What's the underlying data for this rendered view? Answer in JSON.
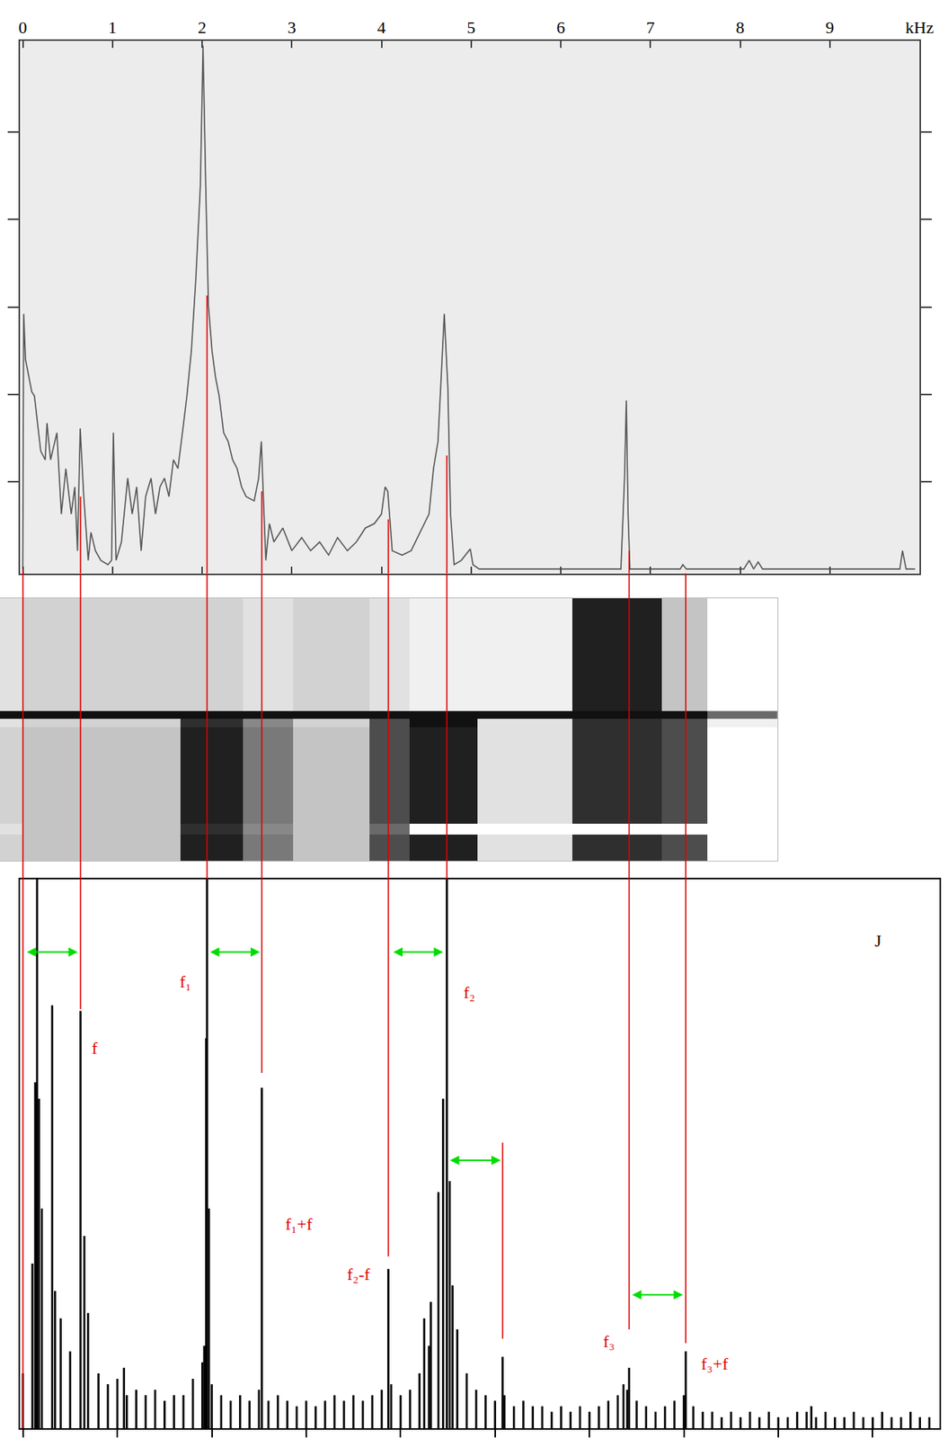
{
  "chart_data": [
    {
      "type": "line",
      "color": "#555555",
      "xlim": [
        -0.03,
        10
      ],
      "xticks": [
        0,
        1,
        2,
        3,
        4,
        5,
        6,
        7,
        8,
        9,
        {
          "value": 10,
          "label": "kHz"
        }
      ],
      "ylim": [
        -0.05,
        6.04
      ],
      "yticks": [
        1,
        2,
        3,
        4,
        5
      ],
      "tick_labels": "x",
      "x": [
        0.0,
        0.01,
        0.03,
        0.1,
        0.13,
        0.2,
        0.25,
        0.27,
        0.31,
        0.38,
        0.43,
        0.48,
        0.54,
        0.58,
        0.61,
        0.64,
        0.68,
        0.73,
        0.76,
        0.81,
        0.87,
        0.95,
        0.99,
        1.01,
        1.04,
        1.1,
        1.17,
        1.22,
        1.27,
        1.32,
        1.37,
        1.43,
        1.48,
        1.53,
        1.58,
        1.63,
        1.68,
        1.73,
        1.78,
        1.83,
        1.88,
        1.93,
        1.98,
        2.01,
        2.04,
        2.07,
        2.11,
        2.15,
        2.19,
        2.24,
        2.29,
        2.34,
        2.39,
        2.44,
        2.49,
        2.58,
        2.63,
        2.66,
        2.69,
        2.71,
        2.75,
        2.8,
        2.9,
        3.0,
        3.11,
        3.21,
        3.31,
        3.41,
        3.51,
        3.62,
        3.72,
        3.82,
        3.92,
        4.0,
        4.04,
        4.07,
        4.12,
        4.23,
        4.33,
        4.43,
        4.53,
        4.58,
        4.63,
        4.67,
        4.7,
        4.74,
        4.77,
        4.81,
        4.89,
        4.99,
        5.02,
        5.09,
        6.67,
        6.71,
        6.73,
        6.75,
        6.77,
        7.33,
        7.36,
        7.4,
        8.04,
        8.1,
        8.15,
        8.2,
        8.25,
        9.78,
        9.81,
        9.85,
        9.95
      ],
      "values": [
        0,
        2.92,
        2.4,
        2.03,
        1.98,
        1.35,
        1.25,
        1.67,
        1.25,
        1.56,
        0.63,
        1.15,
        0.63,
        0.94,
        0.21,
        1.61,
        0.83,
        0.1,
        0.42,
        0.21,
        0.1,
        0.05,
        0.1,
        1.56,
        0.1,
        0.31,
        1.04,
        0.63,
        0.94,
        0.21,
        0.83,
        1.04,
        0.63,
        0.94,
        1.04,
        0.83,
        1.25,
        1.15,
        1.56,
        1.98,
        2.5,
        3.33,
        4.38,
        5.99,
        4.38,
        3.02,
        2.5,
        2.19,
        1.98,
        1.56,
        1.46,
        1.25,
        1.15,
        0.94,
        0.83,
        0.78,
        1.04,
        1.46,
        0.63,
        0.1,
        0.52,
        0.31,
        0.47,
        0.21,
        0.36,
        0.21,
        0.31,
        0.16,
        0.36,
        0.21,
        0.31,
        0.47,
        0.52,
        0.63,
        0.94,
        0.89,
        0.21,
        0.16,
        0.21,
        0.42,
        0.63,
        1.15,
        1.46,
        2.29,
        2.92,
        2.08,
        0.63,
        0.05,
        0.1,
        0.23,
        0.05,
        0,
        0,
        1.04,
        1.93,
        0.63,
        0,
        0,
        0.05,
        0,
        0,
        0.1,
        0,
        0.08,
        0,
        0,
        0.21,
        0,
        0
      ]
    },
    {
      "type": "heatmap",
      "xlim": [
        -0.25,
        8.38
      ],
      "ylim": [
        10,
        0
      ],
      "tick_labels": false,
      "x_edges": [
        -0.25,
        0,
        1.75,
        2.45,
        3.0,
        3.85,
        4.3,
        5.05,
        6.1,
        7.1,
        7.6,
        8.38
      ],
      "y_edges": [
        0,
        4.3,
        4.6,
        4.9,
        8.6,
        9.0,
        10
      ],
      "cells": [
        [
          0.2,
          0.25,
          0.25,
          0.2,
          0.25,
          0.2,
          0.15,
          0.15,
          0.85,
          0.3,
          0.1
        ],
        [
          0.9,
          0.9,
          0.9,
          0.9,
          0.9,
          0.9,
          0.9,
          0.9,
          0.9,
          0.9,
          0.6
        ],
        [
          0.2,
          0.25,
          0.8,
          0.5,
          0.25,
          0.7,
          0.9,
          0.2,
          0.8,
          0.7,
          0.15
        ],
        [
          0.25,
          0.3,
          0.85,
          0.55,
          0.3,
          0.7,
          0.85,
          0.2,
          0.8,
          0.7,
          0.1
        ],
        [
          0.2,
          0.3,
          0.8,
          0.5,
          0.3,
          0.6,
          0.1,
          0.1,
          0.1,
          0.1,
          0.1
        ],
        [
          0.25,
          0.3,
          0.85,
          0.55,
          0.3,
          0.7,
          0.85,
          0.2,
          0.8,
          0.7,
          0.1
        ]
      ]
    },
    {
      "type": "bar",
      "color": "#000000",
      "xlim": [
        -0.03,
        9.71
      ],
      "xticks": [
        0,
        1,
        2,
        3,
        4,
        5,
        6,
        7,
        8,
        9
      ],
      "ylim": [
        0,
        100
      ],
      "tick_labels": false,
      "x": [
        0.0,
        0.1,
        0.13,
        0.15,
        0.17,
        0.2,
        0.31,
        0.34,
        0.4,
        0.5,
        0.61,
        0.65,
        0.69,
        0.8,
        0.9,
        1.0,
        1.07,
        1.1,
        1.2,
        1.3,
        1.4,
        1.5,
        1.6,
        1.7,
        1.8,
        1.9,
        1.92,
        1.94,
        1.95,
        1.97,
        2.0,
        2.1,
        2.2,
        2.3,
        2.4,
        2.5,
        2.53,
        2.6,
        2.7,
        2.8,
        2.9,
        3.0,
        3.1,
        3.2,
        3.3,
        3.4,
        3.5,
        3.6,
        3.7,
        3.8,
        3.87,
        3.9,
        4.0,
        4.1,
        4.2,
        4.25,
        4.3,
        4.32,
        4.4,
        4.45,
        4.49,
        4.52,
        4.55,
        4.6,
        4.7,
        4.8,
        4.9,
        5.0,
        5.08,
        5.1,
        5.2,
        5.3,
        5.4,
        5.5,
        5.6,
        5.7,
        5.8,
        5.9,
        6.0,
        6.1,
        6.2,
        6.3,
        6.36,
        6.4,
        6.42,
        6.5,
        6.6,
        6.7,
        6.8,
        6.9,
        7.0,
        7.02,
        7.1,
        7.2,
        7.3,
        7.4,
        7.5,
        7.6,
        7.7,
        7.8,
        7.9,
        8.0,
        8.1,
        8.2,
        8.3,
        8.35,
        8.4,
        8.5,
        8.6,
        8.7,
        8.8,
        8.9,
        9.0,
        9.1,
        9.2,
        9.3,
        9.4,
        9.5,
        9.6
      ],
      "values": [
        10,
        30,
        63,
        100,
        60,
        40,
        77,
        25,
        20,
        14,
        76,
        35,
        21,
        10,
        8,
        9,
        11,
        6,
        7,
        6,
        7,
        5,
        6,
        6,
        9,
        12,
        15,
        71,
        100,
        40,
        8,
        6,
        5,
        6,
        5,
        7,
        62,
        5,
        6,
        5,
        4,
        5,
        4,
        5,
        6,
        5,
        6,
        5,
        6,
        7,
        29,
        8,
        6,
        7,
        10,
        20,
        15,
        23,
        43,
        60,
        100,
        45,
        26,
        18,
        10,
        7,
        6,
        5,
        13,
        6,
        4,
        5,
        4,
        4,
        3,
        4,
        3,
        4,
        3,
        4,
        5,
        6,
        8,
        7,
        11,
        5,
        4,
        3,
        4,
        5,
        6,
        14,
        4,
        3,
        3,
        2,
        3,
        2,
        3,
        2,
        3,
        2,
        2,
        3,
        3,
        4,
        2,
        3,
        2,
        2,
        3,
        2,
        2,
        3,
        2,
        2,
        3,
        2,
        2
      ],
      "annotations": [
        {
          "text": "f",
          "x": 0.76,
          "y": 69.3,
          "color": "#e00000"
        },
        {
          "text": "f₁",
          "x": 1.72,
          "y": 81.3,
          "color": "#e00000"
        },
        {
          "text": "f₁+f",
          "x": 2.92,
          "y": 37.2,
          "color": "#e00000"
        },
        {
          "text": "f₂-f",
          "x": 3.56,
          "y": 28,
          "color": "#e00000"
        },
        {
          "text": "f₂",
          "x": 4.73,
          "y": 79.3,
          "color": "#e00000"
        },
        {
          "text": "f₃",
          "x": 6.21,
          "y": 15.8,
          "color": "#e00000"
        },
        {
          "text": "f₃+f",
          "x": 7.33,
          "y": 11.7,
          "color": "#e00000"
        },
        {
          "text": "J",
          "x": 9.06,
          "y": 88.8,
          "color": "#000000"
        }
      ],
      "connectors": [
        {
          "x": 0.0,
          "top": 0,
          "bottom": 0,
          "color": "#e00000"
        },
        {
          "x": 0.61,
          "top": 0.83,
          "bottom": 76.3,
          "color": "#e00000"
        },
        {
          "x": 1.95,
          "top": 3.13,
          "bottom": 100,
          "color": "#e00000"
        },
        {
          "x": 2.53,
          "top": 0.89,
          "bottom": 64.7,
          "color": "#e00000"
        },
        {
          "x": 3.87,
          "top": 0.57,
          "bottom": 31.3,
          "color": "#e00000"
        },
        {
          "x": 4.49,
          "top": 1.3,
          "bottom": 100,
          "color": "#e00000"
        },
        {
          "x": 5.08,
          "start": 52,
          "bottom": 16.3,
          "color": "#e00000"
        },
        {
          "x": 6.42,
          "top": 0.21,
          "bottom": 18,
          "color": "#e00000"
        },
        {
          "x": 7.02,
          "top": -0.05,
          "bottom": 15.5,
          "color": "#e00000"
        }
      ],
      "arrows": [
        {
          "x0": 0.03,
          "x1": 0.58,
          "y": 86.7,
          "color": "#00dd00"
        },
        {
          "x0": 1.97,
          "x1": 2.51,
          "y": 86.7,
          "color": "#00dd00"
        },
        {
          "x0": 3.91,
          "x1": 4.45,
          "y": 86.7,
          "color": "#00dd00"
        },
        {
          "x0": 4.51,
          "x1": 5.06,
          "y": 48.8,
          "color": "#00dd00"
        },
        {
          "x0": 6.44,
          "x1": 6.99,
          "y": 24.3,
          "color": "#00dd00"
        }
      ]
    }
  ]
}
